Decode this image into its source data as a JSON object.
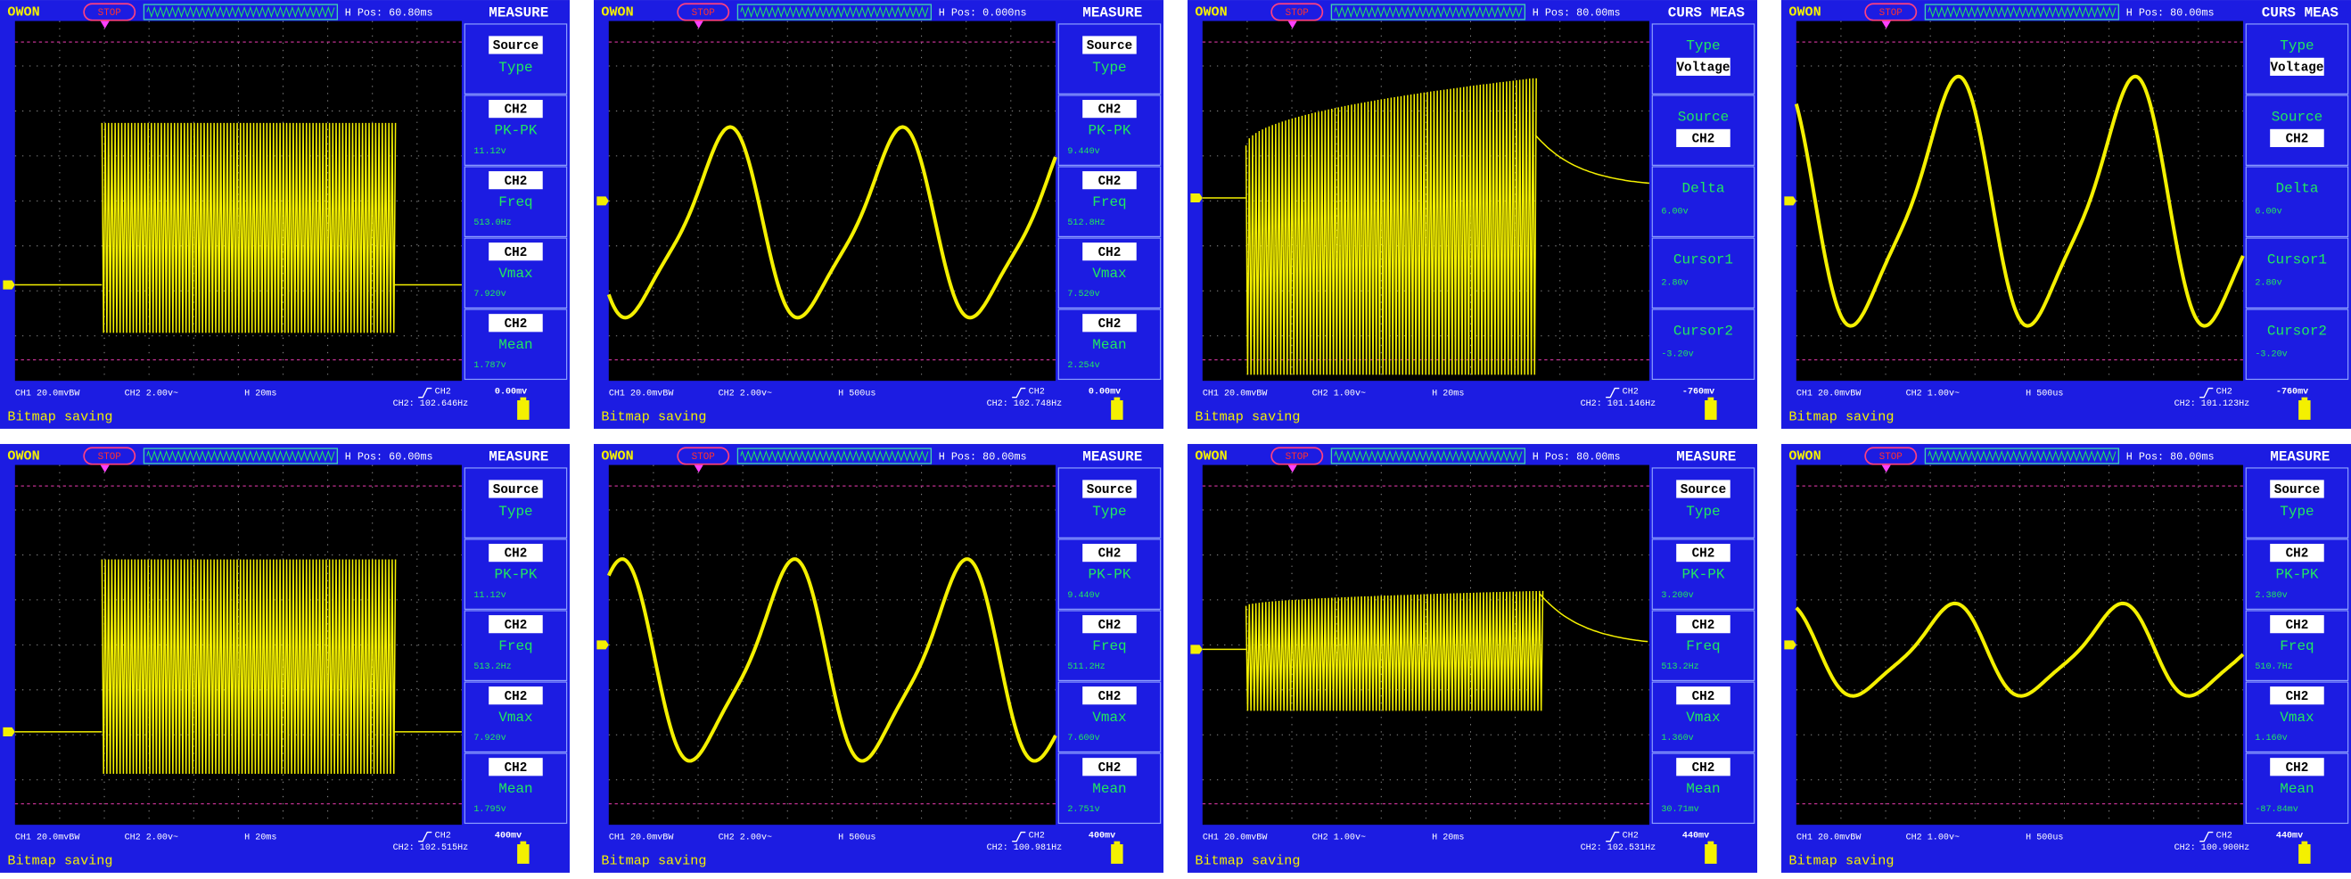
{
  "screens": [
    {
      "header": {
        "brand": "OWON",
        "status": "STOP",
        "h_pos": "H Pos: 60.80ms",
        "menu_title": "MEASURE"
      },
      "menu": [
        {
          "tag": "Source",
          "label": "Type"
        },
        {
          "tag": "CH2",
          "label": "PK-PK",
          "value": "11.12v"
        },
        {
          "tag": "CH2",
          "label": "Freq",
          "value": "513.0Hz"
        },
        {
          "tag": "CH2",
          "label": "Vmax",
          "value": "7.920v"
        },
        {
          "tag": "CH2",
          "label": "Mean",
          "value": "1.787v"
        }
      ],
      "footer": {
        "ch1": "CH1 20.0mvBW",
        "ch2": "CH2 2.00v~",
        "timebase": "H 20ms",
        "trigger_source": "CH2",
        "trigger_level": "0.00mv",
        "frequency": "CH2: 102.646Hz",
        "message": "Bitmap saving"
      }
    },
    {
      "header": {
        "brand": "OWON",
        "status": "STOP",
        "h_pos": "H Pos: 0.000ns",
        "menu_title": "MEASURE"
      },
      "menu": [
        {
          "tag": "Source",
          "label": "Type"
        },
        {
          "tag": "CH2",
          "label": "PK-PK",
          "value": "9.440v"
        },
        {
          "tag": "CH2",
          "label": "Freq",
          "value": "512.8Hz"
        },
        {
          "tag": "CH2",
          "label": "Vmax",
          "value": "7.520v"
        },
        {
          "tag": "CH2",
          "label": "Mean",
          "value": "2.254v"
        }
      ],
      "footer": {
        "ch1": "CH1 20.0mvBW",
        "ch2": "CH2 2.00v~",
        "timebase": "H 500us",
        "trigger_source": "CH2",
        "trigger_level": "0.00mv",
        "frequency": "CH2: 102.748Hz",
        "message": "Bitmap saving"
      }
    },
    {
      "header": {
        "brand": "OWON",
        "status": "STOP",
        "h_pos": "H Pos: 80.00ms",
        "menu_title": "CURS MEAS"
      },
      "menu": [
        {
          "label": "Type",
          "tag": "Voltage"
        },
        {
          "label": "Source",
          "tag": "CH2"
        },
        {
          "label": "Delta",
          "value": "6.00v"
        },
        {
          "label": "Cursor1",
          "value": "2.80v"
        },
        {
          "label": "Cursor2",
          "value": "-3.20v"
        }
      ],
      "footer": {
        "ch1": "CH1 20.0mvBW",
        "ch2": "CH2 1.00v~",
        "timebase": "H 20ms",
        "trigger_source": "CH2",
        "trigger_level": "-760mv",
        "frequency": "CH2: 101.146Hz",
        "message": "Bitmap saving"
      }
    },
    {
      "header": {
        "brand": "OWON",
        "status": "STOP",
        "h_pos": "H Pos: 80.00ms",
        "menu_title": "CURS MEAS"
      },
      "menu": [
        {
          "label": "Type",
          "tag": "Voltage"
        },
        {
          "label": "Source",
          "tag": "CH2"
        },
        {
          "label": "Delta",
          "value": "6.00v"
        },
        {
          "label": "Cursor1",
          "value": "2.80v"
        },
        {
          "label": "Cursor2",
          "value": "-3.20v"
        }
      ],
      "footer": {
        "ch1": "CH1 20.0mvBW",
        "ch2": "CH2 1.00v~",
        "timebase": "H 500us",
        "trigger_source": "CH2",
        "trigger_level": "-760mv",
        "frequency": "CH2: 101.123Hz",
        "message": "Bitmap saving"
      }
    },
    {
      "header": {
        "brand": "OWON",
        "status": "STOP",
        "h_pos": "H Pos: 60.00ms",
        "menu_title": "MEASURE"
      },
      "menu": [
        {
          "tag": "Source",
          "label": "Type"
        },
        {
          "tag": "CH2",
          "label": "PK-PK",
          "value": "11.12v"
        },
        {
          "tag": "CH2",
          "label": "Freq",
          "value": "513.2Hz"
        },
        {
          "tag": "CH2",
          "label": "Vmax",
          "value": "7.920v"
        },
        {
          "tag": "CH2",
          "label": "Mean",
          "value": "1.795v"
        }
      ],
      "footer": {
        "ch1": "CH1 20.0mvBW",
        "ch2": "CH2 2.00v~",
        "timebase": "H 20ms",
        "trigger_source": "CH2",
        "trigger_level": "400mv",
        "frequency": "CH2: 102.515Hz",
        "message": "Bitmap saving"
      }
    },
    {
      "header": {
        "brand": "OWON",
        "status": "STOP",
        "h_pos": "H Pos: 80.00ms",
        "menu_title": "MEASURE"
      },
      "menu": [
        {
          "tag": "Source",
          "label": "Type"
        },
        {
          "tag": "CH2",
          "label": "PK-PK",
          "value": "9.440v"
        },
        {
          "tag": "CH2",
          "label": "Freq",
          "value": "511.2Hz"
        },
        {
          "tag": "CH2",
          "label": "Vmax",
          "value": "7.600v"
        },
        {
          "tag": "CH2",
          "label": "Mean",
          "value": "2.751v"
        }
      ],
      "footer": {
        "ch1": "CH1 20.0mvBW",
        "ch2": "CH2 2.00v~",
        "timebase": "H 500us",
        "trigger_source": "CH2",
        "trigger_level": "400mv",
        "frequency": "CH2: 100.981Hz",
        "message": "Bitmap saving"
      }
    },
    {
      "header": {
        "brand": "OWON",
        "status": "STOP",
        "h_pos": "H Pos: 80.00ms",
        "menu_title": "MEASURE"
      },
      "menu": [
        {
          "tag": "Source",
          "label": "Type"
        },
        {
          "tag": "CH2",
          "label": "PK-PK",
          "value": "3.200v"
        },
        {
          "tag": "CH2",
          "label": "Freq",
          "value": "513.2Hz"
        },
        {
          "tag": "CH2",
          "label": "Vmax",
          "value": "1.360v"
        },
        {
          "tag": "CH2",
          "label": "Mean",
          "value": "30.71mv"
        }
      ],
      "footer": {
        "ch1": "CH1 20.0mvBW",
        "ch2": "CH2 1.00v~",
        "timebase": "H 20ms",
        "trigger_source": "CH2",
        "trigger_level": "440mv",
        "frequency": "CH2: 102.531Hz",
        "message": "Bitmap saving"
      }
    },
    {
      "header": {
        "brand": "OWON",
        "status": "STOP",
        "h_pos": "H Pos: 80.00ms",
        "menu_title": "MEASURE"
      },
      "menu": [
        {
          "tag": "Source",
          "label": "Type"
        },
        {
          "tag": "CH2",
          "label": "PK-PK",
          "value": "2.380v"
        },
        {
          "tag": "CH2",
          "label": "Freq",
          "value": "510.7Hz"
        },
        {
          "tag": "CH2",
          "label": "Vmax",
          "value": "1.160v"
        },
        {
          "tag": "CH2",
          "label": "Mean",
          "value": "-87.84mv"
        }
      ],
      "footer": {
        "ch1": "CH1 20.0mvBW",
        "ch2": "CH2 1.00v~",
        "timebase": "H 500us",
        "trigger_source": "CH2",
        "trigger_level": "440mv",
        "frequency": "CH2: 100.900Hz",
        "message": "Bitmap saving"
      }
    }
  ]
}
